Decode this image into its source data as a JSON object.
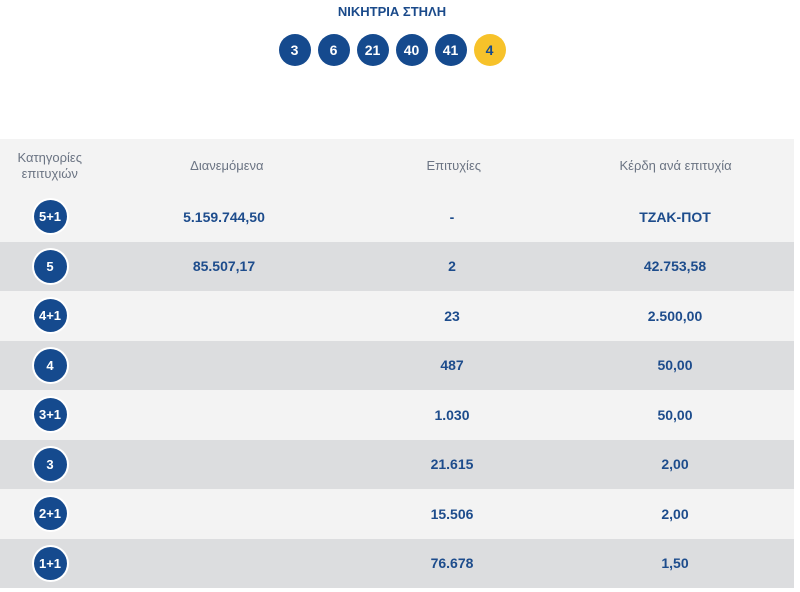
{
  "header": {
    "title": "ΝΙΚΗΤΡΙΑ ΣΤΗΛΗ",
    "winning_numbers": [
      "3",
      "6",
      "21",
      "40",
      "41"
    ],
    "joker": "4"
  },
  "table": {
    "columns": [
      "Κατηγορίες επιτυχιών",
      "Διανεμόμενα",
      "Επιτυχίες",
      "Κέρδη ανά επιτυχία"
    ],
    "rows": [
      {
        "category": "5+1",
        "distributed": "5.159.744,50",
        "winners": "-",
        "prize": "ΤΖΑΚ-ΠΟΤ"
      },
      {
        "category": "5",
        "distributed": "85.507,17",
        "winners": "2",
        "prize": "42.753,58"
      },
      {
        "category": "4+1",
        "distributed": "",
        "winners": "23",
        "prize": "2.500,00"
      },
      {
        "category": "4",
        "distributed": "",
        "winners": "487",
        "prize": "50,00"
      },
      {
        "category": "3+1",
        "distributed": "",
        "winners": "1.030",
        "prize": "50,00"
      },
      {
        "category": "3",
        "distributed": "",
        "winners": "21.615",
        "prize": "2,00"
      },
      {
        "category": "2+1",
        "distributed": "",
        "winners": "15.506",
        "prize": "2,00"
      },
      {
        "category": "1+1",
        "distributed": "",
        "winners": "76.678",
        "prize": "1,50"
      }
    ]
  },
  "colors": {
    "ball_blue": "#154a8e",
    "joker_yellow": "#f7c22a",
    "text_blue": "#1d4c8c",
    "row_light": "#f3f3f3",
    "row_dark": "#dcdddf"
  }
}
